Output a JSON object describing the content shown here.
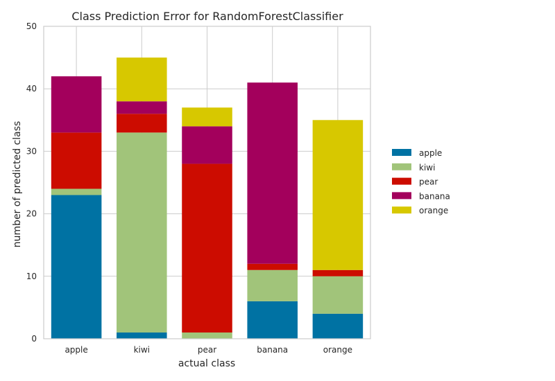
{
  "chart_data": {
    "type": "bar",
    "stacked": true,
    "title": "Class Prediction Error for RandomForestClassifier",
    "xlabel": "actual class",
    "ylabel": "number of predicted class",
    "categories": [
      "apple",
      "kiwi",
      "pear",
      "banana",
      "orange"
    ],
    "ylim": [
      0,
      50
    ],
    "yticks": [
      "0",
      "10",
      "20",
      "30",
      "40",
      "50"
    ],
    "grid": true,
    "legend_position": "right",
    "series": [
      {
        "name": "apple",
        "color": "#0072A3",
        "values": [
          23,
          1,
          0,
          6,
          4
        ]
      },
      {
        "name": "kiwi",
        "color": "#A1C47A",
        "values": [
          1,
          32,
          1,
          5,
          6
        ]
      },
      {
        "name": "pear",
        "color": "#CC0C00",
        "values": [
          9,
          3,
          27,
          1,
          1
        ]
      },
      {
        "name": "banana",
        "color": "#A3005C",
        "values": [
          9,
          2,
          6,
          29,
          0
        ]
      },
      {
        "name": "orange",
        "color": "#D7C800",
        "values": [
          0,
          7,
          3,
          0,
          24
        ]
      }
    ]
  }
}
